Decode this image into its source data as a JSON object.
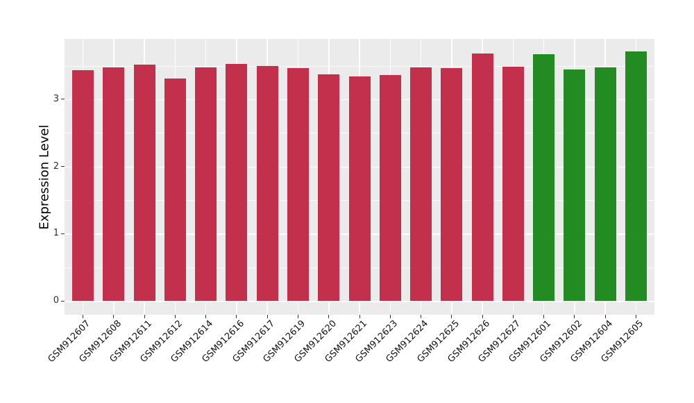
{
  "chart_data": {
    "type": "bar",
    "title": "",
    "xlabel": "",
    "ylabel": "Expression Level",
    "categories": [
      "GSM912607",
      "GSM912608",
      "GSM912611",
      "GSM912612",
      "GSM912614",
      "GSM912616",
      "GSM912617",
      "GSM912619",
      "GSM912620",
      "GSM912621",
      "GSM912623",
      "GSM912624",
      "GSM912625",
      "GSM912626",
      "GSM912627",
      "GSM912601",
      "GSM912602",
      "GSM912604",
      "GSM912605"
    ],
    "values": [
      3.43,
      3.48,
      3.52,
      3.31,
      3.48,
      3.53,
      3.5,
      3.47,
      3.37,
      3.34,
      3.36,
      3.48,
      3.47,
      3.68,
      3.49,
      3.67,
      3.44,
      3.48,
      3.71
    ],
    "groups": [
      "red",
      "red",
      "red",
      "red",
      "red",
      "red",
      "red",
      "red",
      "red",
      "red",
      "red",
      "red",
      "red",
      "red",
      "red",
      "green",
      "green",
      "green",
      "green"
    ],
    "group_colors": {
      "red": "#C2304C",
      "green": "#228B22"
    },
    "yticks": [
      0,
      1,
      2,
      3
    ],
    "minor_yticks": [
      0.5,
      1.5,
      2.5,
      3.5
    ],
    "ylim": [
      -0.21,
      3.9
    ],
    "grid": "on",
    "legend": "none",
    "panel_background": "#EBEBEB",
    "gridline_color": "#FFFFFF",
    "bar_width_ratio": 0.7
  }
}
